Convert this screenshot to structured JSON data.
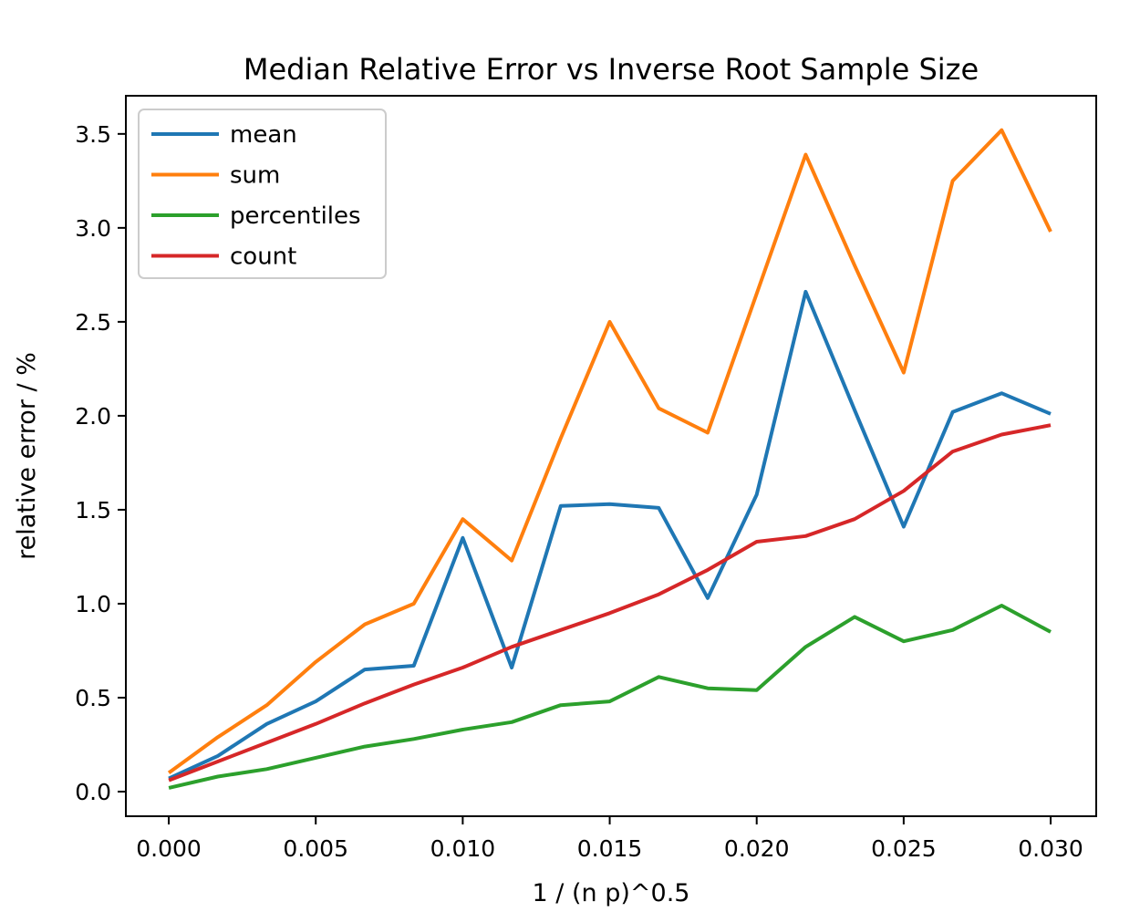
{
  "chart_data": {
    "type": "line",
    "title": "Median Relative Error vs Inverse Root Sample Size",
    "xlabel": "1 / (n p)^0.5",
    "ylabel": "relative error / %",
    "grid": false,
    "legend_position": "upper left",
    "background": "#ffffff",
    "spine_color": "#000000",
    "xlim": [
      -0.00146,
      0.03155
    ],
    "ylim": [
      -0.131,
      3.703
    ],
    "xticks": {
      "values": [
        0.0,
        0.005,
        0.01,
        0.015,
        0.02,
        0.025,
        0.03
      ],
      "labels": [
        "0.000",
        "0.005",
        "0.010",
        "0.015",
        "0.020",
        "0.025",
        "0.030"
      ]
    },
    "yticks": {
      "values": [
        0.0,
        0.5,
        1.0,
        1.5,
        2.0,
        2.5,
        3.0,
        3.5
      ],
      "labels": [
        "0.0",
        "0.5",
        "1.0",
        "1.5",
        "2.0",
        "2.5",
        "3.0",
        "3.5"
      ]
    },
    "x": [
      0.0,
      0.001667,
      0.003333,
      0.005,
      0.006667,
      0.008333,
      0.01,
      0.011667,
      0.013333,
      0.015,
      0.016667,
      0.018333,
      0.02,
      0.021667,
      0.023333,
      0.025,
      0.026667,
      0.028333,
      0.03
    ],
    "series": [
      {
        "name": "mean",
        "color": "#1f77b4",
        "values": [
          0.07,
          0.19,
          0.36,
          0.48,
          0.65,
          0.67,
          1.35,
          0.66,
          1.52,
          1.53,
          1.51,
          1.03,
          1.58,
          2.66,
          2.03,
          1.41,
          2.02,
          2.12,
          2.01
        ]
      },
      {
        "name": "sum",
        "color": "#ff7f0e",
        "values": [
          0.1,
          0.29,
          0.46,
          0.69,
          0.89,
          1.0,
          1.45,
          1.23,
          1.88,
          2.5,
          2.04,
          1.91,
          2.65,
          3.39,
          2.8,
          2.23,
          3.25,
          3.52,
          2.98
        ]
      },
      {
        "name": "percentiles",
        "color": "#2ca02c",
        "values": [
          0.02,
          0.08,
          0.12,
          0.18,
          0.24,
          0.28,
          0.33,
          0.37,
          0.46,
          0.48,
          0.61,
          0.55,
          0.54,
          0.77,
          0.93,
          0.8,
          0.86,
          0.99,
          0.85
        ]
      },
      {
        "name": "count",
        "color": "#d62728",
        "values": [
          0.06,
          0.16,
          0.26,
          0.36,
          0.47,
          0.57,
          0.66,
          0.77,
          0.86,
          0.95,
          1.05,
          1.18,
          1.33,
          1.36,
          1.45,
          1.6,
          1.81,
          1.9,
          1.95
        ]
      }
    ]
  }
}
